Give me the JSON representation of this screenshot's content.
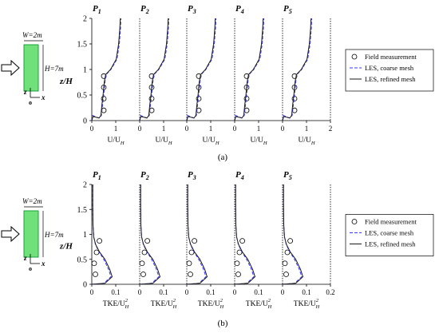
{
  "colors": {
    "axis": "#000000",
    "coarse": "#3a3aff",
    "refined": "#1a1a1a",
    "building_fill": "#6fe07a",
    "building_edge": "#1aa33a"
  },
  "chart_data": [
    {
      "type": "line",
      "panel_label": "(a)",
      "subplot_titles": [
        "P1",
        "P2",
        "P3",
        "P4",
        "P5"
      ],
      "title_main": "P",
      "title_subs": [
        "1",
        "2",
        "3",
        "4",
        "5"
      ],
      "ylabel": "z/H",
      "ylim": [
        0,
        2
      ],
      "yticks": [
        "0",
        "0.5",
        "1",
        "1.5",
        "2"
      ],
      "xlim": [
        0,
        2
      ],
      "xticks": [
        "0",
        "1"
      ],
      "xticks_last": [
        "0",
        "1",
        "2"
      ],
      "xlabel_main": "U/U",
      "xlabel_sub": "H",
      "building": {
        "width_label": "W=2m",
        "height_label": "H=7m",
        "axis_z": "z",
        "axis_x": "x",
        "origin": "o"
      },
      "legend": {
        "placement": "right",
        "entries": [
          "Field measurement",
          "LES, coarse mesh",
          "LES, refined mesh"
        ]
      },
      "series": [
        {
          "name": "Field measurement",
          "style": "markers",
          "z": [
            0.2,
            0.43,
            0.65,
            0.87
          ],
          "values": [
            [
              0.5,
              0.5,
              0.5,
              0.5
            ],
            [
              0.5,
              0.5,
              0.5,
              0.5
            ],
            [
              0.5,
              0.5,
              0.5,
              0.5
            ],
            [
              0.5,
              0.5,
              0.5,
              0.5
            ],
            [
              0.5,
              0.5,
              0.5,
              0.5
            ]
          ]
        },
        {
          "name": "LES, coarse mesh",
          "style": "dashed",
          "profile": [
            [
              0,
              0
            ],
            [
              0.03,
              0.1
            ],
            [
              0.3,
              0.05
            ],
            [
              0.4,
              0.1
            ],
            [
              0.45,
              0.3
            ],
            [
              0.5,
              0.5
            ],
            [
              0.55,
              0.75
            ],
            [
              0.6,
              0.9
            ],
            [
              0.8,
              1.0
            ],
            [
              1.05,
              1.2
            ],
            [
              1.15,
              1.5
            ],
            [
              1.2,
              1.8
            ],
            [
              1.22,
              2.0
            ]
          ]
        },
        {
          "name": "LES, refined mesh",
          "style": "solid",
          "profile": [
            [
              0,
              0
            ],
            [
              0.05,
              0.08
            ],
            [
              0.3,
              0.05
            ],
            [
              0.38,
              0.1
            ],
            [
              0.42,
              0.3
            ],
            [
              0.47,
              0.5
            ],
            [
              0.52,
              0.75
            ],
            [
              0.58,
              0.9
            ],
            [
              0.78,
              1.0
            ],
            [
              1.02,
              1.2
            ],
            [
              1.12,
              1.5
            ],
            [
              1.17,
              1.8
            ],
            [
              1.19,
              2.0
            ]
          ]
        }
      ]
    },
    {
      "type": "line",
      "panel_label": "(b)",
      "subplot_titles": [
        "P1",
        "P2",
        "P3",
        "P4",
        "P5"
      ],
      "title_main": "P",
      "title_subs": [
        "1",
        "2",
        "3",
        "4",
        "5"
      ],
      "ylabel": "z/H",
      "ylim": [
        0,
        2
      ],
      "yticks": [
        "0",
        "0.5",
        "1",
        "1.5",
        "2"
      ],
      "xlim": [
        0,
        0.2
      ],
      "xticks": [
        "0",
        "0.1"
      ],
      "xticks_last": [
        "0",
        "0.1",
        "0.2"
      ],
      "xlabel_main": "TKE/U",
      "xlabel_sub": "H",
      "xlabel_sup": "2",
      "building": {
        "width_label": "W=2m",
        "height_label": "H=7m",
        "axis_z": "z",
        "axis_x": "x",
        "origin": "o"
      },
      "legend": {
        "placement": "right",
        "entries": [
          "Field measurement",
          "LES, coarse mesh",
          "LES, refined mesh"
        ]
      },
      "series": [
        {
          "name": "Field measurement",
          "style": "markers",
          "z": [
            0.2,
            0.42,
            0.64,
            0.87
          ],
          "values": [
            [
              0.015,
              0.01,
              0.02,
              0.032
            ],
            [
              0.015,
              0.01,
              0.02,
              0.032
            ],
            [
              0.015,
              0.01,
              0.02,
              0.032
            ],
            [
              0.015,
              0.01,
              0.02,
              0.032
            ],
            [
              0.015,
              0.01,
              0.02,
              0.032
            ]
          ]
        },
        {
          "name": "LES, coarse mesh",
          "style": "dashed",
          "profile": [
            [
              0.0,
              0.0
            ],
            [
              0.05,
              0.02
            ],
            [
              0.08,
              0.15
            ],
            [
              0.07,
              0.3
            ],
            [
              0.05,
              0.5
            ],
            [
              0.03,
              0.65
            ],
            [
              0.015,
              0.8
            ],
            [
              0.008,
              0.95
            ],
            [
              0.005,
              1.2
            ],
            [
              0.004,
              1.6
            ],
            [
              0.004,
              2.0
            ]
          ]
        },
        {
          "name": "LES, refined mesh",
          "style": "solid",
          "profile": [
            [
              0.0,
              0.0
            ],
            [
              0.055,
              0.02
            ],
            [
              0.085,
              0.15
            ],
            [
              0.075,
              0.3
            ],
            [
              0.055,
              0.5
            ],
            [
              0.032,
              0.65
            ],
            [
              0.016,
              0.8
            ],
            [
              0.008,
              0.95
            ],
            [
              0.005,
              1.2
            ],
            [
              0.004,
              1.6
            ],
            [
              0.004,
              2.0
            ]
          ]
        }
      ]
    }
  ]
}
